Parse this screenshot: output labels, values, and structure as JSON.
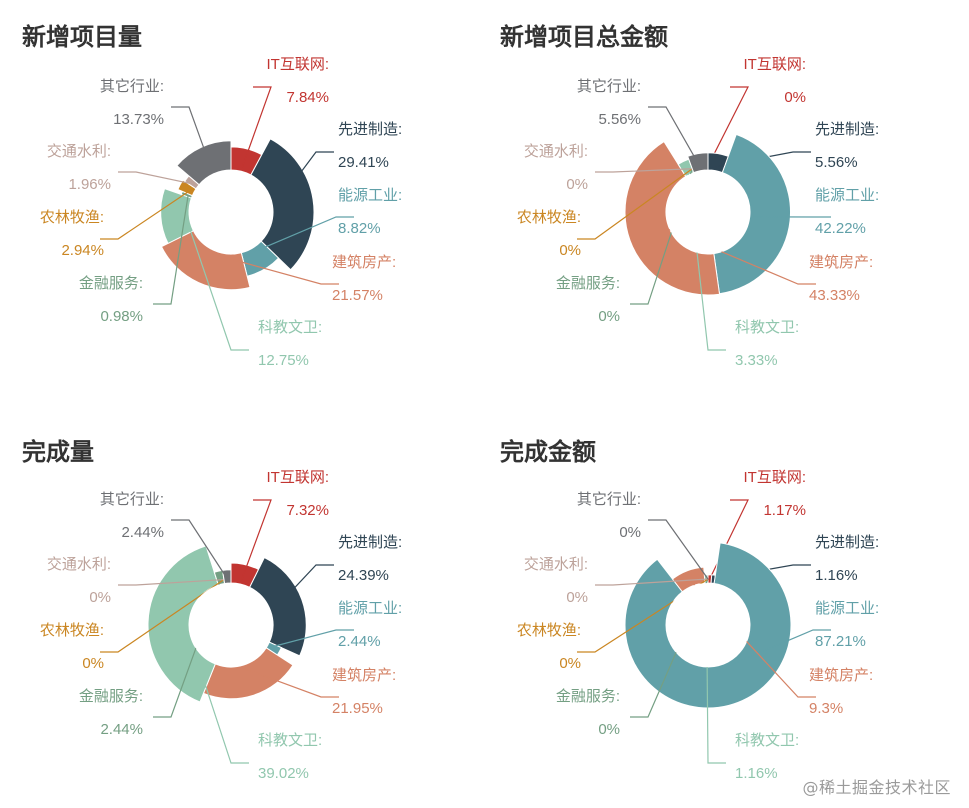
{
  "colors": {
    "it": "#c23531",
    "advanced_mfg": "#2f4554",
    "energy": "#61a0a8",
    "construction": "#d48265",
    "sci_edu": "#91c7ae",
    "finance": "#749f83",
    "agriculture": "#ca8622",
    "transport": "#bda29a",
    "other": "#6e7074"
  },
  "watermark": "@稀土掘金技术社区",
  "chart_data": [
    {
      "type": "pie",
      "variant": "rose",
      "title": "新增项目量",
      "slices": [
        {
          "key": "it",
          "label": "IT互联网:",
          "value": 7.84,
          "display": "7.84%"
        },
        {
          "key": "advanced_mfg",
          "label": "先进制造:",
          "value": 29.41,
          "display": "29.41%"
        },
        {
          "key": "energy",
          "label": "能源工业:",
          "value": 8.82,
          "display": "8.82%"
        },
        {
          "key": "construction",
          "label": "建筑房产:",
          "value": 21.57,
          "display": "21.57%"
        },
        {
          "key": "sci_edu",
          "label": "科教文卫:",
          "value": 12.75,
          "display": "12.75%"
        },
        {
          "key": "finance",
          "label": "金融服务:",
          "value": 0.98,
          "display": "0.98%"
        },
        {
          "key": "agriculture",
          "label": "农林牧渔:",
          "value": 2.94,
          "display": "2.94%"
        },
        {
          "key": "transport",
          "label": "交通水利:",
          "value": 1.96,
          "display": "1.96%"
        },
        {
          "key": "other",
          "label": "其它行业:",
          "value": 13.73,
          "display": "13.73%"
        }
      ]
    },
    {
      "type": "pie",
      "variant": "rose",
      "title": "新增项目总金额",
      "slices": [
        {
          "key": "it",
          "label": "IT互联网:",
          "value": 0,
          "display": "0%"
        },
        {
          "key": "advanced_mfg",
          "label": "先进制造:",
          "value": 5.56,
          "display": "5.56%"
        },
        {
          "key": "energy",
          "label": "能源工业:",
          "value": 42.22,
          "display": "42.22%"
        },
        {
          "key": "construction",
          "label": "建筑房产:",
          "value": 43.33,
          "display": "43.33%"
        },
        {
          "key": "sci_edu",
          "label": "科教文卫:",
          "value": 3.33,
          "display": "3.33%"
        },
        {
          "key": "finance",
          "label": "金融服务:",
          "value": 0,
          "display": "0%"
        },
        {
          "key": "agriculture",
          "label": "农林牧渔:",
          "value": 0,
          "display": "0%"
        },
        {
          "key": "transport",
          "label": "交通水利:",
          "value": 0,
          "display": "0%"
        },
        {
          "key": "other",
          "label": "其它行业:",
          "value": 5.56,
          "display": "5.56%"
        }
      ]
    },
    {
      "type": "pie",
      "variant": "rose",
      "title": "完成量",
      "slices": [
        {
          "key": "it",
          "label": "IT互联网:",
          "value": 7.32,
          "display": "7.32%"
        },
        {
          "key": "advanced_mfg",
          "label": "先进制造:",
          "value": 24.39,
          "display": "24.39%"
        },
        {
          "key": "energy",
          "label": "能源工业:",
          "value": 2.44,
          "display": "2.44%"
        },
        {
          "key": "construction",
          "label": "建筑房产:",
          "value": 21.95,
          "display": "21.95%"
        },
        {
          "key": "sci_edu",
          "label": "科教文卫:",
          "value": 39.02,
          "display": "39.02%"
        },
        {
          "key": "finance",
          "label": "金融服务:",
          "value": 2.44,
          "display": "2.44%"
        },
        {
          "key": "agriculture",
          "label": "农林牧渔:",
          "value": 0,
          "display": "0%"
        },
        {
          "key": "transport",
          "label": "交通水利:",
          "value": 0,
          "display": "0%"
        },
        {
          "key": "other",
          "label": "其它行业:",
          "value": 2.44,
          "display": "2.44%"
        }
      ]
    },
    {
      "type": "pie",
      "variant": "rose",
      "title": "完成金额",
      "slices": [
        {
          "key": "it",
          "label": "IT互联网:",
          "value": 1.17,
          "display": "1.17%"
        },
        {
          "key": "advanced_mfg",
          "label": "先进制造:",
          "value": 1.16,
          "display": "1.16%"
        },
        {
          "key": "energy",
          "label": "能源工业:",
          "value": 87.21,
          "display": "87.21%"
        },
        {
          "key": "construction",
          "label": "建筑房产:",
          "value": 9.3,
          "display": "9.3%"
        },
        {
          "key": "sci_edu",
          "label": "科教文卫:",
          "value": 1.16,
          "display": "1.16%"
        },
        {
          "key": "finance",
          "label": "金融服务:",
          "value": 0,
          "display": "0%"
        },
        {
          "key": "agriculture",
          "label": "农林牧渔:",
          "value": 0,
          "display": "0%"
        },
        {
          "key": "transport",
          "label": "交通水利:",
          "value": 0,
          "display": "0%"
        },
        {
          "key": "other",
          "label": "其它行业:",
          "value": 0,
          "display": "0%"
        }
      ]
    }
  ]
}
